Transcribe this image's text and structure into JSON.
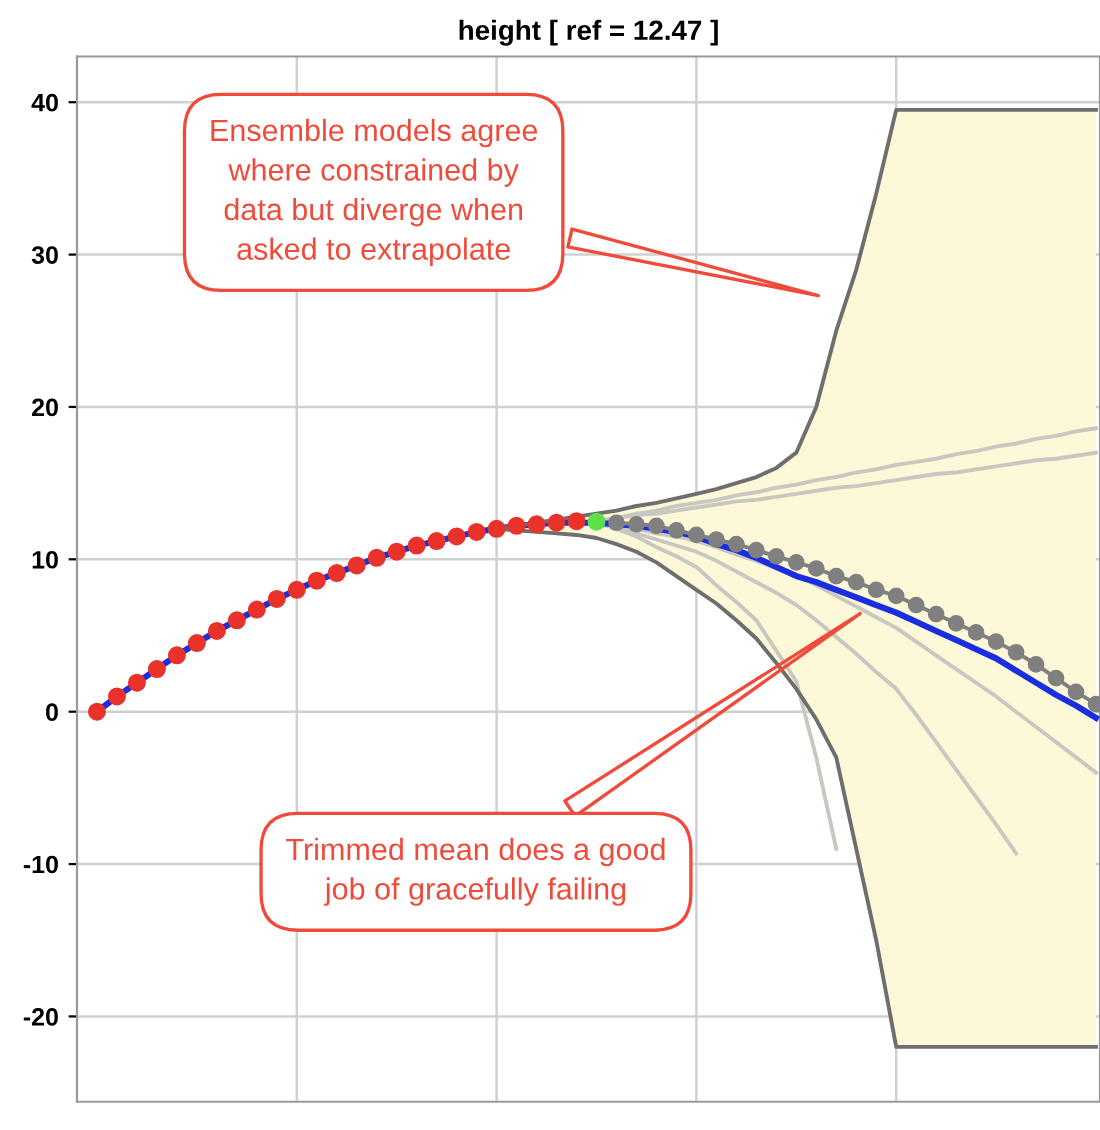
{
  "chart_data": {
    "type": "line",
    "title": "height [ ref = 12.47 ]",
    "categories": [
      null,
      null,
      null,
      null,
      null,
      null,
      null,
      null,
      null,
      null,
      null,
      null,
      null,
      null,
      null,
      null,
      null,
      null,
      null,
      null,
      null,
      null,
      null,
      null,
      null,
      null,
      null,
      null,
      null,
      null,
      null,
      null,
      null,
      null,
      null,
      null,
      null,
      null,
      null,
      null,
      null,
      null,
      null,
      null,
      null,
      null,
      null,
      null,
      null,
      null,
      null
    ],
    "ylim": [
      -25.6,
      43
    ],
    "yticks": [
      -20,
      -10,
      0,
      10,
      20,
      30,
      40
    ],
    "grid": true,
    "tick_labels": "y",
    "series": [
      {
        "color": "#c8c8c0",
        "values": [
          null,
          null,
          null,
          null,
          null,
          null,
          null,
          null,
          null,
          null,
          null,
          null,
          null,
          null,
          null,
          null,
          null,
          null,
          null,
          null,
          null,
          null,
          null,
          null,
          null,
          12.5,
          12.7,
          13.0,
          13.2,
          13.5,
          13.7,
          13.9,
          14.2,
          14.4,
          14.7,
          14.9,
          15.2,
          15.4,
          15.7,
          15.9,
          16.2,
          16.4,
          16.6,
          16.9,
          17.1,
          17.4,
          17.6,
          17.9,
          18.1,
          18.4,
          18.6
        ]
      },
      {
        "color": "#c8c8c0",
        "values": [
          null,
          null,
          null,
          null,
          null,
          null,
          null,
          null,
          null,
          null,
          null,
          null,
          null,
          null,
          null,
          null,
          null,
          null,
          null,
          null,
          null,
          null,
          null,
          null,
          null,
          12.5,
          12.7,
          12.9,
          13.0,
          13.2,
          13.4,
          13.6,
          13.8,
          13.9,
          14.1,
          14.3,
          14.5,
          14.7,
          14.8,
          15.0,
          15.2,
          15.4,
          15.6,
          15.7,
          15.9,
          16.1,
          16.3,
          16.5,
          16.6,
          16.8,
          17.0
        ]
      },
      {
        "color": "#c8c8c0",
        "values": [
          null,
          null,
          null,
          null,
          null,
          null,
          null,
          null,
          null,
          null,
          null,
          null,
          null,
          null,
          null,
          null,
          null,
          null,
          null,
          null,
          null,
          null,
          null,
          null,
          null,
          12.4,
          12.0,
          11.5,
          10.8,
          10.2,
          9.5,
          8.3,
          7.2,
          6.0,
          4.0,
          2.0,
          -3.0,
          -9.0,
          null,
          null,
          null,
          null,
          null,
          null,
          null,
          null,
          null,
          null,
          null,
          null,
          null
        ]
      },
      {
        "color": "#c8c8c0",
        "values": [
          null,
          null,
          null,
          null,
          null,
          null,
          null,
          null,
          null,
          null,
          null,
          null,
          null,
          null,
          null,
          null,
          null,
          null,
          null,
          null,
          null,
          null,
          null,
          null,
          null,
          12.4,
          12.1,
          11.7,
          11.3,
          10.9,
          10.5,
          9.9,
          9.2,
          8.5,
          7.8,
          7.0,
          6.0,
          4.9,
          3.8,
          2.6,
          1.5,
          -0.2,
          -2.0,
          -3.8,
          -5.6,
          -7.4,
          -9.3,
          null,
          null,
          null,
          null
        ]
      },
      {
        "color": "#c8c8c0",
        "values": [
          null,
          null,
          null,
          null,
          null,
          null,
          null,
          null,
          null,
          null,
          null,
          null,
          null,
          null,
          null,
          null,
          null,
          null,
          null,
          null,
          null,
          null,
          null,
          null,
          null,
          12.4,
          12.2,
          12.0,
          11.7,
          11.5,
          11.2,
          10.8,
          10.3,
          9.9,
          9.4,
          9.0,
          8.3,
          7.6,
          6.9,
          6.2,
          5.5,
          4.6,
          3.7,
          2.8,
          1.9,
          1.0,
          0.0,
          -1.0,
          -2.0,
          -3.0,
          -4.0
        ]
      },
      {
        "color": "#1a2ee0",
        "values": [
          0,
          1.0,
          1.9,
          2.8,
          3.7,
          4.5,
          5.3,
          6.0,
          6.7,
          7.4,
          8.0,
          8.6,
          9.1,
          9.6,
          10.1,
          10.5,
          10.9,
          11.2,
          11.5,
          11.8,
          12.0,
          12.2,
          12.3,
          12.4,
          12.4,
          12.4,
          12.3,
          12.2,
          12.0,
          11.8,
          11.5,
          11.0,
          10.6,
          10.1,
          9.5,
          8.9,
          8.5,
          8.0,
          7.5,
          7.0,
          6.5,
          5.9,
          5.3,
          4.7,
          4.1,
          3.5,
          2.7,
          1.9,
          1.1,
          0.4,
          -0.4
        ],
        "lower": [
          null,
          null,
          null,
          null,
          null,
          null,
          null,
          null,
          null,
          null,
          null,
          null,
          null,
          null,
          null,
          null,
          null,
          null,
          null,
          null,
          12.0,
          11.9,
          11.8,
          11.7,
          11.6,
          11.4,
          11.0,
          10.5,
          9.8,
          8.9,
          8.0,
          7.1,
          6.0,
          4.8,
          3.2,
          1.5,
          -0.5,
          -3.0,
          -9.0,
          -15.0,
          -22.0,
          -22.0,
          -22.0,
          -22.0,
          -22.0,
          -22.0,
          -22.0,
          -22.0,
          -22.0,
          -22.0,
          -22.0
        ],
        "upper": [
          null,
          null,
          null,
          null,
          null,
          null,
          null,
          null,
          null,
          null,
          null,
          null,
          null,
          null,
          null,
          null,
          null,
          null,
          null,
          null,
          12.0,
          12.2,
          12.4,
          12.6,
          12.8,
          13.0,
          13.2,
          13.5,
          13.7,
          14.0,
          14.3,
          14.6,
          15.0,
          15.4,
          16.0,
          17.0,
          20.0,
          25.0,
          29.0,
          34.0,
          39.5,
          39.5,
          39.5,
          39.5,
          39.5,
          39.5,
          39.5,
          39.5,
          39.5,
          39.5,
          39.5
        ]
      },
      {
        "color": "#6e6e6e",
        "values": [
          null,
          null,
          null,
          null,
          null,
          null,
          null,
          null,
          null,
          null,
          null,
          null,
          null,
          null,
          null,
          null,
          null,
          null,
          null,
          null,
          12.0,
          12.2,
          12.4,
          12.6,
          12.8,
          13.0,
          13.2,
          13.5,
          13.7,
          14.0,
          14.3,
          14.6,
          15.0,
          15.4,
          16.0,
          17.0,
          20.0,
          25.0,
          29.0,
          34.0,
          39.5,
          39.5,
          39.5,
          39.5,
          39.5,
          39.5,
          39.5,
          39.5,
          39.5,
          39.5,
          39.5
        ]
      },
      {
        "color": "#6e6e6e",
        "values": [
          null,
          null,
          null,
          null,
          null,
          null,
          null,
          null,
          null,
          null,
          null,
          null,
          null,
          null,
          null,
          null,
          null,
          null,
          null,
          null,
          12.0,
          11.9,
          11.8,
          11.7,
          11.6,
          11.4,
          11.0,
          10.5,
          9.8,
          8.9,
          8.0,
          7.1,
          6.0,
          4.8,
          3.2,
          1.5,
          -0.5,
          -3.0,
          -9.0,
          -15.0,
          -22.0,
          -22.0,
          -22.0,
          -22.0,
          -22.0,
          -22.0,
          -22.0,
          -22.0,
          -22.0,
          -22.0,
          -22.0
        ]
      },
      {
        "color": "#808080",
        "marker": "circle",
        "values": [
          null,
          null,
          null,
          null,
          null,
          null,
          null,
          null,
          null,
          null,
          null,
          null,
          null,
          null,
          null,
          null,
          null,
          null,
          null,
          null,
          null,
          null,
          null,
          null,
          null,
          null,
          12.4,
          12.3,
          12.2,
          11.9,
          11.6,
          11.3,
          11.0,
          10.6,
          10.2,
          9.8,
          9.4,
          8.9,
          8.5,
          8.0,
          7.6,
          7.0,
          6.4,
          5.8,
          5.2,
          4.6,
          3.9,
          3.1,
          2.2,
          1.3,
          0.5
        ]
      },
      {
        "type": "scatter",
        "color": "#e8322a",
        "values": [
          0,
          1.0,
          1.9,
          2.8,
          3.7,
          4.5,
          5.3,
          6.0,
          6.7,
          7.4,
          8.0,
          8.6,
          9.1,
          9.6,
          10.1,
          10.5,
          10.9,
          11.2,
          11.5,
          11.8,
          12.0,
          12.2,
          12.3,
          12.4,
          12.5,
          null,
          null,
          null,
          null,
          null,
          null,
          null,
          null,
          null,
          null,
          null,
          null,
          null,
          null,
          null,
          null,
          null,
          null,
          null,
          null,
          null,
          null,
          null,
          null,
          null,
          null
        ]
      },
      {
        "type": "scatter",
        "color": "#5ee04a",
        "values": [
          null,
          null,
          null,
          null,
          null,
          null,
          null,
          null,
          null,
          null,
          null,
          null,
          null,
          null,
          null,
          null,
          null,
          null,
          null,
          null,
          null,
          null,
          null,
          null,
          null,
          12.47,
          null,
          null,
          null,
          null,
          null,
          null,
          null,
          null,
          null,
          null,
          null,
          null,
          null,
          null,
          null,
          null,
          null,
          null,
          null,
          null,
          null,
          null,
          null,
          null,
          null
        ]
      }
    ],
    "annotations": [
      "Ensemble models agree\nwhere constrained by\ndata but diverge when\nasked to extrapolate",
      "Trimmed mean does a good\njob of gracefully failing"
    ]
  }
}
